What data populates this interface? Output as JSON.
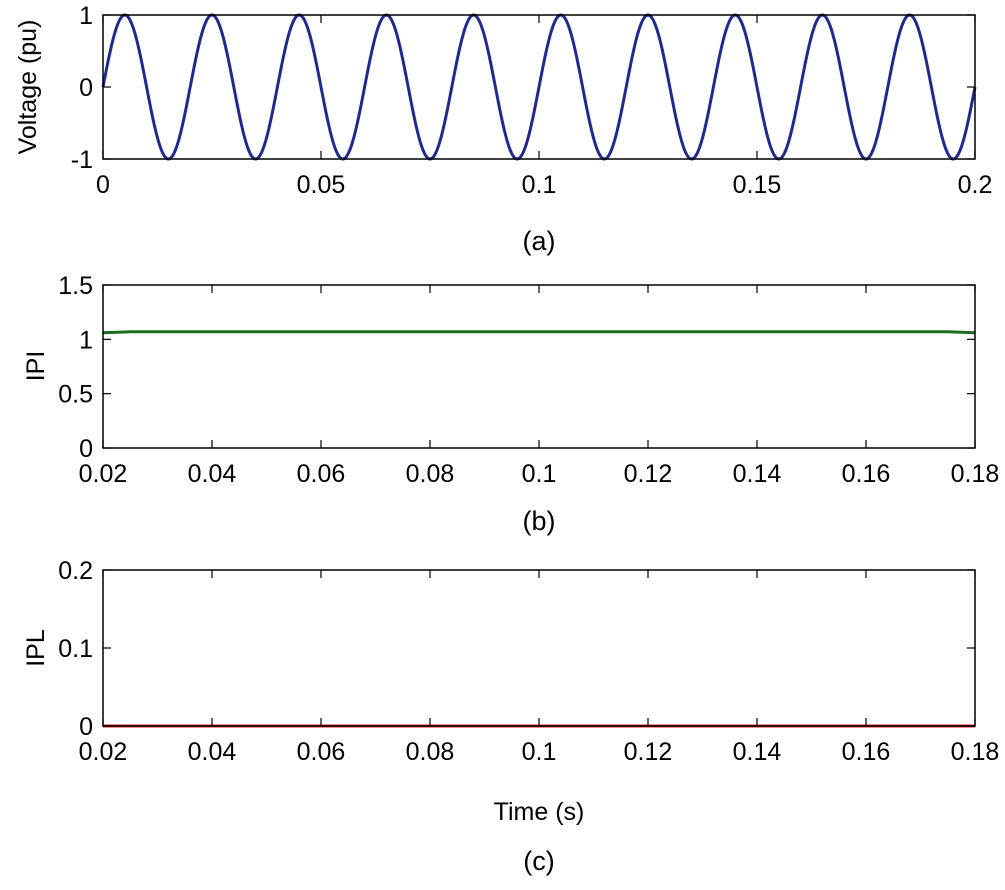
{
  "figure_colors": {
    "voltage_line": "#1f2a8c",
    "ipi_line": "#1f6b1f",
    "ipl_line": "#d62020"
  },
  "chart_data": [
    {
      "type": "line",
      "panel": "a",
      "caption": "(a)",
      "title": "",
      "xlabel": "",
      "ylabel": "Voltage (pu)",
      "xlim": [
        0,
        0.2
      ],
      "ylim": [
        -1,
        1
      ],
      "xticks": [
        0,
        0.05,
        0.1,
        0.15,
        0.2
      ],
      "xtick_labels": [
        "0",
        "0.05",
        "0.1",
        "0.15",
        "0.2"
      ],
      "yticks": [
        -1,
        0,
        1
      ],
      "ytick_labels": [
        "-1",
        "0",
        "1"
      ],
      "series": [
        {
          "name": "Voltage",
          "function": "sine",
          "amplitude": 1,
          "frequency_hz": 50,
          "x_start": 0,
          "x_end": 0.2,
          "color": "#1f2a8c"
        }
      ]
    },
    {
      "type": "line",
      "panel": "b",
      "caption": "(b)",
      "title": "",
      "xlabel": "",
      "ylabel": "IPI",
      "xlim": [
        0.02,
        0.18
      ],
      "ylim": [
        0,
        1.5
      ],
      "xticks": [
        0.02,
        0.04,
        0.06,
        0.08,
        0.1,
        0.12,
        0.14,
        0.16,
        0.18
      ],
      "xtick_labels": [
        "0.02",
        "0.04",
        "0.06",
        "0.08",
        "0.1",
        "0.12",
        "0.14",
        "0.16",
        "0.18"
      ],
      "yticks": [
        0,
        0.5,
        1,
        1.5
      ],
      "ytick_labels": [
        "0",
        "0.5",
        "1",
        "1.5"
      ],
      "series": [
        {
          "name": "IPI",
          "x": [
            0.02,
            0.025,
            0.03,
            0.1,
            0.17,
            0.175,
            0.18
          ],
          "y": [
            1.06,
            1.07,
            1.07,
            1.07,
            1.07,
            1.07,
            1.06
          ],
          "color": "#1f6b1f"
        }
      ]
    },
    {
      "type": "line",
      "panel": "c",
      "caption": "(c)",
      "title": "",
      "xlabel": "Time (s)",
      "ylabel": "IPL",
      "xlim": [
        0.02,
        0.18
      ],
      "ylim": [
        0,
        0.2
      ],
      "xticks": [
        0.02,
        0.04,
        0.06,
        0.08,
        0.1,
        0.12,
        0.14,
        0.16,
        0.18
      ],
      "xtick_labels": [
        "0.02",
        "0.04",
        "0.06",
        "0.08",
        "0.1",
        "0.12",
        "0.14",
        "0.16",
        "0.18"
      ],
      "yticks": [
        0,
        0.1,
        0.2
      ],
      "ytick_labels": [
        "0",
        "0.1",
        "0.2"
      ],
      "series": [
        {
          "name": "IPL",
          "x": [
            0.02,
            0.18
          ],
          "y": [
            0,
            0
          ],
          "color": "#d62020"
        }
      ]
    }
  ]
}
